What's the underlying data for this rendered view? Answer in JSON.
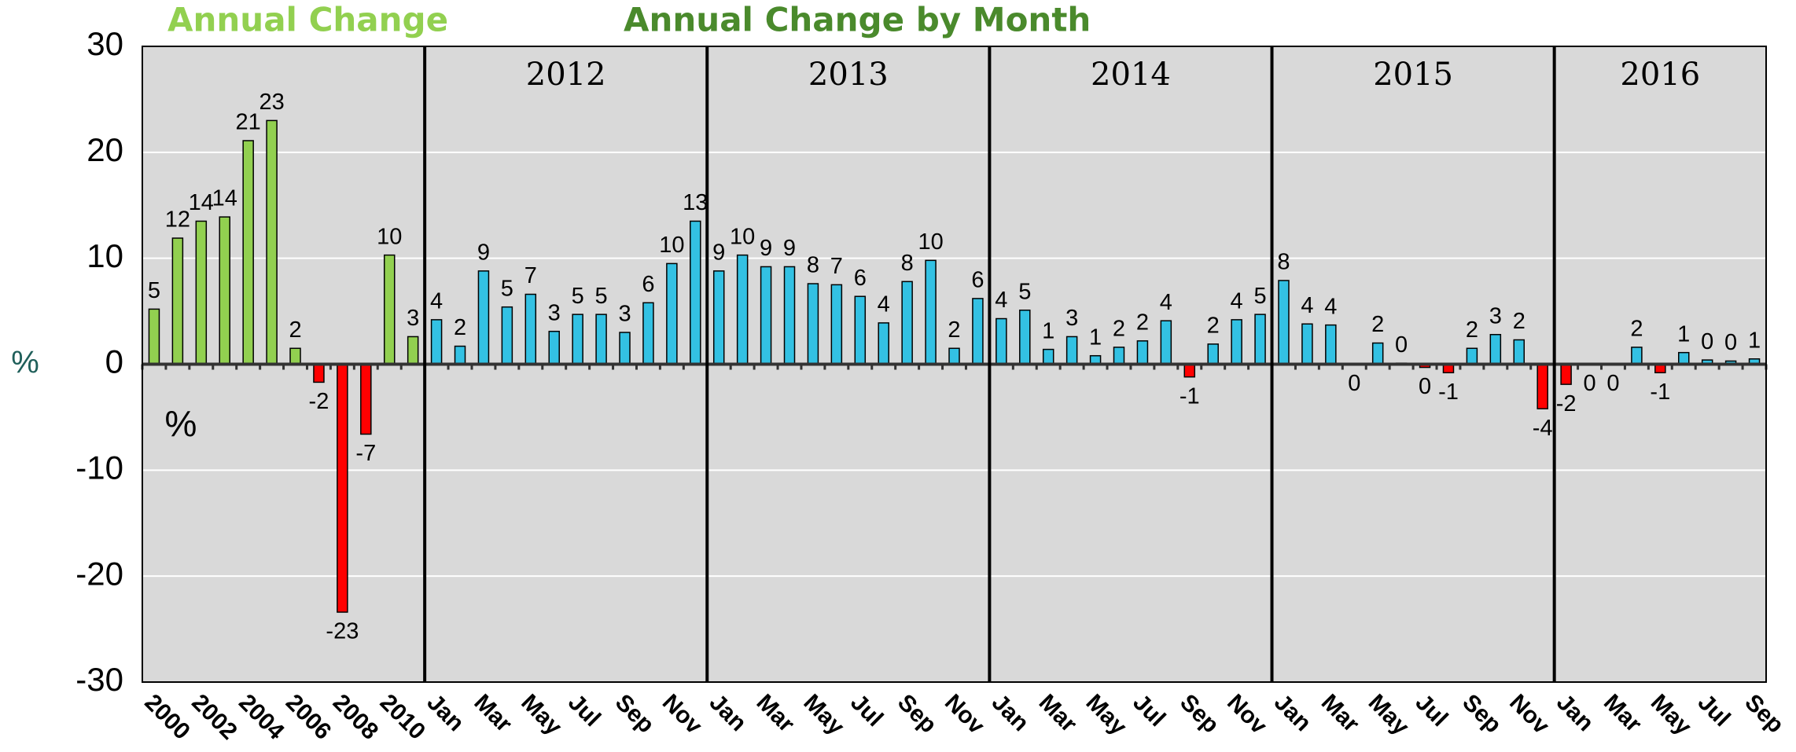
{
  "chart_data": {
    "type": "bar",
    "ylabel": "%",
    "annotation": "%",
    "ylim": [
      -30,
      30
    ],
    "yticks": [
      -30,
      -20,
      -10,
      0,
      10,
      20,
      30
    ],
    "grid": true,
    "negative_color": "#ff0000",
    "panels": [
      {
        "title": "Annual Change",
        "color": "#92d050",
        "categories": [
          "2000",
          null,
          "2002",
          null,
          "2004",
          null,
          "2006",
          null,
          "2008",
          null,
          "2010",
          null
        ],
        "values": [
          5.2,
          11.9,
          13.5,
          13.9,
          21.1,
          23.0,
          1.5,
          -1.7,
          -23.4,
          -6.6,
          10.3,
          2.6
        ],
        "value_labels": [
          "5",
          "12",
          "14",
          "14",
          "21",
          "23",
          "2",
          "-2",
          "-23",
          "-7",
          "10",
          "3"
        ]
      },
      {
        "title": "Annual Change by Month",
        "color": "#33c1e3",
        "groups": [
          {
            "label": "2012",
            "categories": [
              "Jan",
              null,
              "Mar",
              null,
              "May",
              null,
              "Jul",
              null,
              "Sep",
              null,
              "Nov",
              null
            ],
            "values": [
              4.2,
              1.7,
              8.8,
              5.4,
              6.6,
              3.1,
              4.7,
              4.7,
              3.0,
              5.8,
              9.5,
              13.5
            ],
            "value_labels": [
              "4",
              "2",
              "9",
              "5",
              "7",
              "3",
              "5",
              "5",
              "3",
              "6",
              "10",
              "13"
            ]
          },
          {
            "label": "2013",
            "categories": [
              "Jan",
              null,
              "Mar",
              null,
              "May",
              null,
              "Jul",
              null,
              "Sep",
              null,
              "Nov",
              null
            ],
            "values": [
              8.8,
              10.3,
              9.2,
              9.2,
              7.6,
              7.5,
              6.4,
              3.9,
              7.8,
              9.8,
              1.5,
              6.2
            ],
            "value_labels": [
              "9",
              "10",
              "9",
              "9",
              "8",
              "7",
              "6",
              "4",
              "8",
              "10",
              "2",
              "6"
            ]
          },
          {
            "label": "2014",
            "categories": [
              "Jan",
              null,
              "Mar",
              null,
              "May",
              null,
              "Jul",
              null,
              "Sep",
              null,
              "Nov",
              null
            ],
            "values": [
              4.3,
              5.1,
              1.4,
              2.6,
              0.8,
              1.6,
              2.2,
              4.1,
              -1.2,
              1.9,
              4.2,
              4.7
            ],
            "value_labels": [
              "4",
              "5",
              "1",
              "3",
              "1",
              "2",
              "2",
              "4",
              "-1",
              "2",
              "4",
              "5"
            ]
          },
          {
            "label": "2015",
            "categories": [
              "Jan",
              null,
              "Mar",
              null,
              "May",
              null,
              "Jul",
              null,
              "Sep",
              null,
              "Nov",
              null
            ],
            "values": [
              7.9,
              3.8,
              3.7,
              0,
              2.0,
              0.1,
              -0.3,
              -0.8,
              1.5,
              2.8,
              2.3,
              -4.2
            ],
            "value_labels": [
              "8",
              "4",
              "4",
              "0",
              "2",
              "0",
              "0",
              "-1",
              "2",
              "3",
              "2",
              "-4"
            ]
          },
          {
            "label": "2016",
            "categories": [
              "Jan",
              null,
              "Mar",
              null,
              "May",
              null,
              "Jul",
              null,
              "Sep"
            ],
            "values": [
              -1.9,
              0,
              0,
              1.6,
              -0.8,
              1.1,
              0.4,
              0.3,
              0.5
            ],
            "value_labels": [
              "-2",
              "0",
              "0",
              "2",
              "-1",
              "1",
              "0",
              "0",
              "1"
            ]
          }
        ]
      }
    ]
  }
}
